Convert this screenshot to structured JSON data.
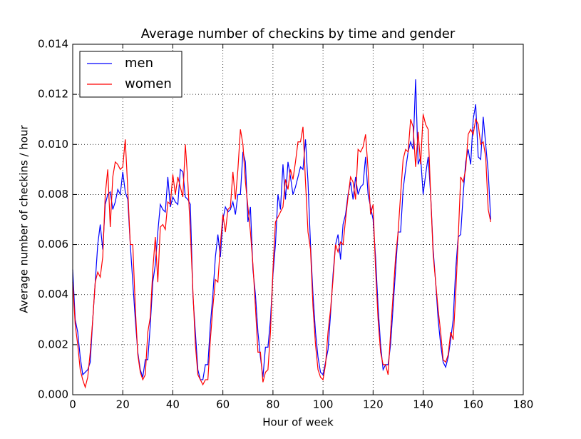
{
  "chart_data": {
    "type": "line",
    "title": "Average number of checkins by time and gender",
    "x_label": "Hour of week",
    "y_label": "Average number of checkins / hour",
    "x": [
      0,
      1,
      2,
      3,
      4,
      5,
      6,
      7,
      8,
      9,
      10,
      11,
      12,
      13,
      14,
      15,
      16,
      17,
      18,
      19,
      20,
      21,
      22,
      23,
      24,
      25,
      26,
      27,
      28,
      29,
      30,
      31,
      32,
      33,
      34,
      35,
      36,
      37,
      38,
      39,
      40,
      41,
      42,
      43,
      44,
      45,
      46,
      47,
      48,
      49,
      50,
      51,
      52,
      53,
      54,
      55,
      56,
      57,
      58,
      59,
      60,
      61,
      62,
      63,
      64,
      65,
      66,
      67,
      68,
      69,
      70,
      71,
      72,
      73,
      74,
      75,
      76,
      77,
      78,
      79,
      80,
      81,
      82,
      83,
      84,
      85,
      86,
      87,
      88,
      89,
      90,
      91,
      92,
      93,
      94,
      95,
      96,
      97,
      98,
      99,
      100,
      101,
      102,
      103,
      104,
      105,
      106,
      107,
      108,
      109,
      110,
      111,
      112,
      113,
      114,
      115,
      116,
      117,
      118,
      119,
      120,
      121,
      122,
      123,
      124,
      125,
      126,
      127,
      128,
      129,
      130,
      131,
      132,
      133,
      134,
      135,
      136,
      137,
      138,
      139,
      140,
      141,
      142,
      143,
      144,
      145,
      146,
      147,
      148,
      149,
      150,
      151,
      152,
      153,
      154,
      155,
      156,
      157,
      158,
      159,
      160,
      161,
      162,
      163,
      164,
      165,
      166,
      167
    ],
    "series": [
      {
        "name": "men",
        "color": "#0000ff",
        "values": [
          0.005,
          0.003,
          0.0025,
          0.0015,
          0.0008,
          0.0009,
          0.001,
          0.0013,
          0.003,
          0.0045,
          0.006,
          0.0068,
          0.0058,
          0.0076,
          0.008,
          0.0081,
          0.0074,
          0.0077,
          0.0082,
          0.008,
          0.0089,
          0.0081,
          0.0078,
          0.006,
          0.0045,
          0.003,
          0.0017,
          0.001,
          0.0007,
          0.0014,
          0.0014,
          0.0028,
          0.0045,
          0.0052,
          0.0065,
          0.0076,
          0.0074,
          0.0073,
          0.0087,
          0.0075,
          0.0079,
          0.0077,
          0.0076,
          0.009,
          0.0089,
          0.0079,
          0.0078,
          0.0076,
          0.004,
          0.0025,
          0.001,
          0.0006,
          0.0006,
          0.0012,
          0.0012,
          0.0028,
          0.004,
          0.0055,
          0.0064,
          0.0055,
          0.007,
          0.0075,
          0.0073,
          0.0074,
          0.0077,
          0.0072,
          0.008,
          0.008,
          0.0097,
          0.0093,
          0.0069,
          0.0075,
          0.005,
          0.004,
          0.0025,
          0.0015,
          0.0007,
          0.0019,
          0.0019,
          0.003,
          0.0048,
          0.006,
          0.008,
          0.0074,
          0.0092,
          0.0078,
          0.0093,
          0.0087,
          0.008,
          0.0083,
          0.0087,
          0.0091,
          0.009,
          0.0102,
          0.0085,
          0.006,
          0.004,
          0.0025,
          0.0015,
          0.0009,
          0.0008,
          0.0013,
          0.0018,
          0.0032,
          0.0048,
          0.006,
          0.0064,
          0.0054,
          0.0068,
          0.0072,
          0.008,
          0.0085,
          0.0078,
          0.0087,
          0.008,
          0.0083,
          0.0084,
          0.0095,
          0.008,
          0.0075,
          0.007,
          0.0055,
          0.0035,
          0.002,
          0.001,
          0.0012,
          0.0012,
          0.002,
          0.0035,
          0.005,
          0.0065,
          0.0065,
          0.0082,
          0.009,
          0.0097,
          0.0101,
          0.0098,
          0.0126,
          0.0092,
          0.0095,
          0.008,
          0.0088,
          0.0095,
          0.008,
          0.0058,
          0.0045,
          0.003,
          0.002,
          0.0013,
          0.0011,
          0.0015,
          0.0022,
          0.003,
          0.005,
          0.0063,
          0.0064,
          0.008,
          0.0093,
          0.0098,
          0.0092,
          0.011,
          0.0116,
          0.0095,
          0.0094,
          0.0111,
          0.01,
          0.0089,
          0.007
        ]
      },
      {
        "name": "women",
        "color": "#ff0000",
        "values": [
          0.0045,
          0.0028,
          0.002,
          0.001,
          0.0006,
          0.0003,
          0.0007,
          0.0017,
          0.003,
          0.0045,
          0.0049,
          0.0047,
          0.0055,
          0.008,
          0.009,
          0.0067,
          0.0087,
          0.0093,
          0.0092,
          0.009,
          0.0091,
          0.0102,
          0.0082,
          0.006,
          0.006,
          0.0035,
          0.0016,
          0.0009,
          0.0006,
          0.0008,
          0.0025,
          0.0031,
          0.005,
          0.0063,
          0.0045,
          0.0067,
          0.0068,
          0.0066,
          0.0077,
          0.0076,
          0.0088,
          0.008,
          0.0087,
          0.0083,
          0.0079,
          0.01,
          0.0085,
          0.0065,
          0.0042,
          0.002,
          0.0008,
          0.0006,
          0.0004,
          0.0006,
          0.0006,
          0.0022,
          0.0035,
          0.0046,
          0.0045,
          0.006,
          0.0072,
          0.0065,
          0.0074,
          0.0075,
          0.0089,
          0.0078,
          0.009,
          0.0106,
          0.01,
          0.0085,
          0.0075,
          0.0065,
          0.0052,
          0.0035,
          0.0017,
          0.0017,
          0.0005,
          0.0009,
          0.001,
          0.0025,
          0.005,
          0.0069,
          0.0071,
          0.0073,
          0.0075,
          0.0086,
          0.0082,
          0.009,
          0.0086,
          0.0093,
          0.0101,
          0.0101,
          0.0107,
          0.0085,
          0.0065,
          0.0058,
          0.0035,
          0.002,
          0.001,
          0.0007,
          0.0006,
          0.0012,
          0.0025,
          0.0034,
          0.0046,
          0.006,
          0.0057,
          0.0061,
          0.006,
          0.007,
          0.0079,
          0.0087,
          0.0085,
          0.0078,
          0.0098,
          0.0097,
          0.0099,
          0.0104,
          0.009,
          0.0072,
          0.0076,
          0.005,
          0.003,
          0.0017,
          0.0012,
          0.0012,
          0.0008,
          0.0025,
          0.004,
          0.0055,
          0.0065,
          0.008,
          0.0094,
          0.0098,
          0.0097,
          0.011,
          0.0107,
          0.0091,
          0.0105,
          0.0092,
          0.0112,
          0.0108,
          0.0106,
          0.008,
          0.0056,
          0.0045,
          0.0034,
          0.0025,
          0.0014,
          0.0013,
          0.0016,
          0.0025,
          0.0022,
          0.004,
          0.0062,
          0.0087,
          0.0085,
          0.009,
          0.0104,
          0.0106,
          0.0104,
          0.011,
          0.0108,
          0.01,
          0.0101,
          0.0095,
          0.0074,
          0.0069
        ]
      }
    ],
    "xlim": [
      0,
      180
    ],
    "xticks": [
      0,
      20,
      40,
      60,
      80,
      100,
      120,
      140,
      160,
      180
    ],
    "ylim": [
      0,
      0.014
    ],
    "yticks": [
      {
        "value": 0,
        "label": "0.000"
      },
      {
        "value": 0.002,
        "label": "0.002"
      },
      {
        "value": 0.004,
        "label": "0.004"
      },
      {
        "value": 0.006,
        "label": "0.006"
      },
      {
        "value": 0.008,
        "label": "0.008"
      },
      {
        "value": 0.01,
        "label": "0.010"
      },
      {
        "value": 0.012,
        "label": "0.012"
      },
      {
        "value": 0.014,
        "label": "0.014"
      }
    ],
    "grid": true,
    "legend": "upper-left"
  }
}
